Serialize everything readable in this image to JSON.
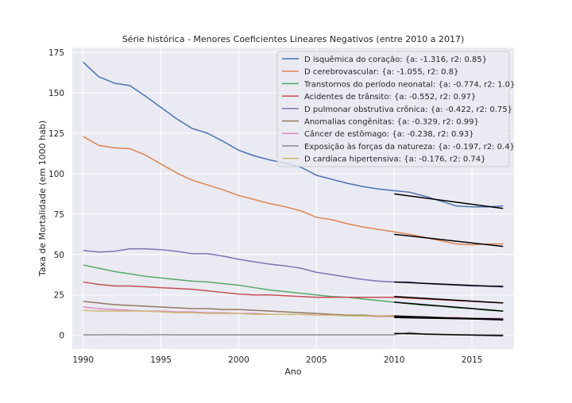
{
  "chart_data": {
    "type": "line",
    "title": "Série histórica - Menores Coeficientes Lineares Negativos (entre 2010 a 2017)",
    "xlabel": "Ano",
    "ylabel": "Taxa de Mortalidade (em 1000 hab)",
    "xlim": [
      1989.3,
      2017.7
    ],
    "ylim": [
      -8.5,
      178
    ],
    "xticks": [
      1990,
      1995,
      2000,
      2005,
      2010,
      2015
    ],
    "yticks": [
      0,
      25,
      50,
      75,
      100,
      125,
      150,
      175
    ],
    "grid": true,
    "legend_position": "top-right",
    "x": [
      1990,
      1991,
      1992,
      1993,
      1994,
      1995,
      1996,
      1997,
      1998,
      1999,
      2000,
      2001,
      2002,
      2003,
      2004,
      2005,
      2006,
      2007,
      2008,
      2009,
      2010,
      2011,
      2012,
      2013,
      2014,
      2015,
      2016,
      2017
    ],
    "series": [
      {
        "name": "D isquêmica do coração: {a: -1.316, r2: 0.85}",
        "color": "#4c72b0",
        "values": [
          169,
          160,
          156,
          154.5,
          148,
          141,
          134,
          128,
          125,
          120,
          114.5,
          111,
          108.5,
          106.5,
          104,
          99,
          96.5,
          94,
          92,
          90.5,
          89.5,
          88.5,
          86,
          83,
          80,
          79.5,
          79.5,
          80
        ]
      },
      {
        "name": "D cerebrovascular: {a: -1.055, r2: 0.8}",
        "color": "#dd8452",
        "values": [
          123,
          117.5,
          116,
          115.5,
          111.5,
          106,
          100.5,
          96,
          93,
          90,
          86.5,
          84,
          81.5,
          79.5,
          77,
          73,
          71.5,
          69,
          67,
          65.5,
          64,
          62.5,
          60.5,
          58.5,
          56.5,
          56,
          56.5,
          56.5
        ]
      },
      {
        "name": "Transtornos do período neonatal: {a: -0.774, r2: 1.0}",
        "color": "#55a868",
        "values": [
          43.5,
          41.5,
          39.5,
          38,
          36.5,
          35.5,
          34.5,
          33.5,
          33,
          32,
          31,
          29.5,
          28,
          27,
          26,
          25,
          24,
          23.5,
          22.5,
          21.5,
          20.5,
          19.5,
          18.5,
          18,
          17,
          16.5,
          15.5,
          15
        ]
      },
      {
        "name": "Acidentes de trânsito: {a: -0.552, r2: 0.97}",
        "color": "#c44e52",
        "values": [
          33,
          31.5,
          30.5,
          30.5,
          30,
          29.5,
          29,
          28.5,
          27.5,
          26.5,
          25.5,
          25,
          25,
          24.5,
          24,
          23.5,
          23.5,
          23.5,
          23.5,
          23.5,
          23.5,
          23,
          22.5,
          22,
          21.5,
          21,
          20.5,
          20
        ]
      },
      {
        "name": "D pulmonar obstrutiva crônica: {a: -0.422, r2: 0.75}",
        "color": "#8172b3",
        "values": [
          52.5,
          51.5,
          52,
          53.5,
          53.5,
          53,
          52,
          50.5,
          50.5,
          49,
          47,
          45.5,
          44,
          43,
          41.5,
          39,
          37.5,
          36,
          34.5,
          33.5,
          33,
          33,
          32,
          31.5,
          31,
          30.5,
          30.5,
          30.5
        ]
      },
      {
        "name": "Anomalias congênitas: {a: -0.329, r2: 0.99}",
        "color": "#937860",
        "values": [
          21,
          20,
          19,
          18.5,
          18,
          17.5,
          17,
          16.5,
          16.5,
          16,
          16,
          15.5,
          15,
          14.5,
          14,
          13.5,
          13,
          12.5,
          12.5,
          12,
          12,
          11.5,
          11.5,
          11,
          10.5,
          10.5,
          10,
          10
        ]
      },
      {
        "name": "Câncer de estômago: {a: -0.238, r2: 0.93}",
        "color": "#da8bc3",
        "values": [
          17.5,
          16.5,
          16,
          15.5,
          15,
          15,
          14.5,
          14.5,
          14,
          14,
          13.5,
          13.5,
          13,
          13,
          13,
          12.5,
          12.5,
          12,
          12,
          11.5,
          11.5,
          11.5,
          11,
          11,
          11,
          10.5,
          10.5,
          10.5
        ]
      },
      {
        "name": "Exposição às forças da natureza: {a: -0.197, r2: 0.4}",
        "color": "#8c8c8c",
        "values": [
          0.3,
          0.3,
          0.4,
          0.3,
          0.3,
          0.4,
          0.3,
          0.3,
          0.3,
          0.3,
          0.3,
          0.3,
          0.3,
          0.3,
          0.3,
          0.3,
          0.3,
          0.3,
          0.3,
          0.3,
          0.3,
          1.8,
          0.5,
          0.4,
          0.3,
          0.3,
          0.3,
          0.3
        ]
      },
      {
        "name": "D cardíaca hipertensiva: {a: -0.176, r2: 0.74}",
        "color": "#ccb974",
        "values": [
          15.5,
          15,
          15,
          15,
          15,
          14.5,
          14,
          14,
          13.5,
          13.5,
          13.5,
          13,
          13,
          13,
          13,
          12.5,
          12.5,
          12,
          12,
          12,
          11.5,
          11.5,
          11,
          11,
          10.5,
          10.5,
          10,
          10
        ]
      }
    ],
    "trend_lines": [
      {
        "x": [
          2010,
          2017
        ],
        "y": [
          87.5,
          78.5
        ]
      },
      {
        "x": [
          2010,
          2017
        ],
        "y": [
          62.5,
          55
        ]
      },
      {
        "x": [
          2010,
          2017
        ],
        "y": [
          20.5,
          15
        ]
      },
      {
        "x": [
          2010,
          2017
        ],
        "y": [
          24,
          20
        ]
      },
      {
        "x": [
          2010,
          2017
        ],
        "y": [
          33,
          30
        ]
      },
      {
        "x": [
          2010,
          2017
        ],
        "y": [
          12,
          9.5
        ]
      },
      {
        "x": [
          2010,
          2017
        ],
        "y": [
          11.5,
          10
        ]
      },
      {
        "x": [
          2010,
          2017
        ],
        "y": [
          1.2,
          -0.3
        ]
      },
      {
        "x": [
          2010,
          2017
        ],
        "y": [
          11,
          9.8
        ]
      }
    ],
    "colors": {
      "plot_background": "#eaeaf2",
      "grid": "#ffffff",
      "trend": "#000000",
      "text": "#262626"
    }
  }
}
